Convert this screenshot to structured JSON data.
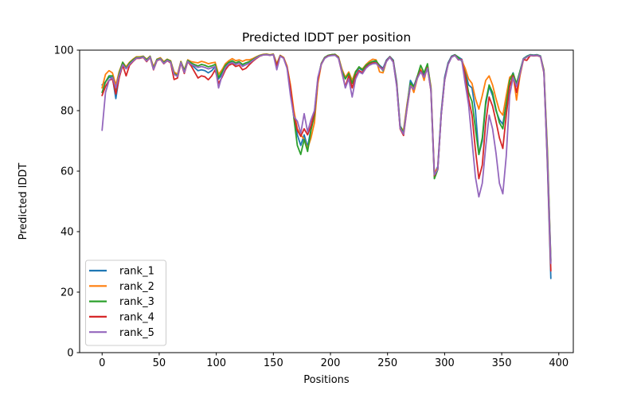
{
  "chart_data": {
    "type": "line",
    "title": "Predicted lDDT per position",
    "xlabel": "Positions",
    "ylabel": "Predicted lDDT",
    "xlim": [
      -19.7,
      412.7
    ],
    "ylim": [
      0,
      100
    ],
    "x_ticks": [
      0,
      50,
      100,
      150,
      200,
      250,
      300,
      350,
      400
    ],
    "y_ticks": [
      0,
      20,
      40,
      60,
      80,
      100
    ],
    "grid": false,
    "legend_position": "lower left",
    "x_start": 0,
    "x_step": 3,
    "series": [
      {
        "name": "rank_1",
        "color": "#1f77b4",
        "values": [
          88.5,
          89.5,
          91,
          91,
          84,
          91.5,
          95.5,
          94,
          95.5,
          96.5,
          97.7,
          97.7,
          98,
          96.7,
          98,
          94,
          97,
          97.4,
          96,
          97,
          96.4,
          92.2,
          91.5,
          96.2,
          93,
          96.7,
          95.3,
          94.2,
          93.2,
          93.5,
          93.2,
          92.5,
          93.2,
          94.5,
          90.5,
          92,
          94.5,
          95.8,
          96,
          95.2,
          95.8,
          94.8,
          95.2,
          95.8,
          96.6,
          97.4,
          98.1,
          98.5,
          98.6,
          98.4,
          98.6,
          95.2,
          98.2,
          97.5,
          94.5,
          88,
          78.5,
          72,
          68.5,
          72,
          68,
          74,
          79,
          90,
          95.5,
          97.6,
          98.3,
          98.5,
          98.6,
          97.7,
          93.5,
          90.5,
          92.5,
          89,
          92.5,
          94,
          93.3,
          94.8,
          95.7,
          96.2,
          96.2,
          95,
          94,
          96.7,
          97.9,
          96.7,
          89.5,
          75,
          73,
          81.5,
          90,
          88,
          91.3,
          93.5,
          92,
          94.5,
          87.5,
          59,
          61.5,
          79.5,
          91,
          95.8,
          98,
          98.5,
          97.7,
          97,
          93,
          88.5,
          87.5,
          80,
          65.5,
          70,
          82,
          88,
          85,
          80,
          77,
          75.5,
          82.5,
          90,
          92.5,
          88.5,
          93,
          97.2,
          98,
          98.5,
          98.4,
          98.5,
          98.1,
          93,
          62,
          24.5
        ]
      },
      {
        "name": "rank_2",
        "color": "#ff7f0e",
        "values": [
          87.5,
          92,
          93.2,
          92.5,
          88.5,
          93,
          96,
          94.5,
          96,
          97,
          97.8,
          97.8,
          98,
          97,
          98,
          94.5,
          97,
          97.5,
          96.2,
          97,
          96.5,
          92.8,
          92,
          96.3,
          93.5,
          96.8,
          96.2,
          96,
          95.8,
          96.3,
          96,
          95.5,
          95.8,
          96,
          92,
          93.5,
          95.5,
          96.5,
          97.2,
          96.5,
          96.8,
          96.3,
          96.8,
          96.8,
          97.2,
          97.8,
          98.3,
          98.6,
          98.7,
          98.5,
          98.7,
          95.5,
          98.3,
          97.6,
          94.8,
          88.5,
          80,
          74,
          72,
          70.5,
          67.5,
          71,
          76,
          89,
          95.2,
          97.4,
          98.2,
          98.5,
          98.6,
          97.8,
          93.8,
          91,
          92.8,
          90,
          93,
          94.3,
          93.8,
          95.2,
          96.3,
          97,
          96.8,
          92.8,
          92.5,
          96.3,
          97.8,
          96.3,
          88.5,
          74.5,
          73.5,
          82,
          89,
          86,
          90.5,
          93.8,
          90,
          94.8,
          88,
          59.5,
          61,
          78.5,
          90,
          95.3,
          97.7,
          98.4,
          97.5,
          96.5,
          94,
          90.5,
          89,
          84,
          80.5,
          85,
          90,
          91.5,
          88.5,
          84,
          80,
          78.5,
          85,
          91,
          92,
          83.5,
          91.5,
          96.8,
          97.7,
          98.4,
          98.3,
          98.4,
          98,
          93.5,
          67,
          30
        ]
      },
      {
        "name": "rank_3",
        "color": "#2ca02c",
        "values": [
          86,
          89.5,
          91.5,
          91.5,
          87,
          92.5,
          96,
          94,
          95.8,
          96.8,
          97.6,
          97.6,
          97.9,
          96.8,
          97.9,
          94,
          96.9,
          97.3,
          95.9,
          96.9,
          96.3,
          92.3,
          91.5,
          96.1,
          93.2,
          96.6,
          95.8,
          95.2,
          94.8,
          95.3,
          95,
          94.5,
          94.8,
          95.3,
          91,
          92.8,
          95,
          96,
          96.5,
          95.8,
          96.2,
          95.3,
          95.8,
          96.2,
          96.9,
          97.6,
          98.2,
          98.5,
          98.6,
          98.4,
          98.6,
          95,
          98.2,
          97.4,
          94.2,
          87,
          77.5,
          68.5,
          65.5,
          70.5,
          66.5,
          73.5,
          78.5,
          90.5,
          95.6,
          97.6,
          98.3,
          98.5,
          98.6,
          97.6,
          93.2,
          90.5,
          92.3,
          89,
          92.8,
          94.5,
          93.5,
          95,
          95.8,
          96.3,
          96.5,
          94.8,
          93.2,
          96.4,
          97.8,
          96.4,
          89,
          74.8,
          72.8,
          81.2,
          89.2,
          87.8,
          91.2,
          95,
          92.5,
          95.5,
          87.2,
          57.5,
          60.5,
          78.8,
          90.3,
          95.4,
          97.8,
          98.4,
          97.6,
          96.4,
          92.2,
          86,
          83,
          74,
          65.5,
          71,
          83,
          88.5,
          86,
          80.5,
          76,
          74,
          82,
          90,
          92.3,
          89,
          93,
          97.1,
          97.9,
          98.4,
          98.3,
          98.4,
          98,
          93.2,
          66,
          30.5
        ]
      },
      {
        "name": "rank_4",
        "color": "#d62728",
        "values": [
          85,
          88,
          90,
          90.5,
          85.5,
          91,
          95,
          91.5,
          95,
          96.2,
          97.3,
          97.3,
          97.6,
          96.2,
          97.6,
          93.5,
          96.5,
          97,
          95.5,
          96.5,
          95.8,
          90.3,
          90.8,
          95.8,
          92.3,
          96.2,
          94.8,
          92.8,
          90.8,
          91.5,
          91.2,
          90.2,
          91.5,
          93.5,
          89,
          91,
          93.5,
          95,
          95.5,
          94.6,
          95,
          93.5,
          94,
          95.2,
          96.3,
          97.2,
          98,
          98.4,
          98.5,
          98.3,
          98.5,
          94.8,
          98.1,
          97.4,
          94.3,
          87.5,
          78.5,
          73.5,
          71.5,
          74,
          72,
          75,
          79.5,
          90.2,
          95.4,
          97.4,
          98.1,
          98.3,
          98.4,
          97.4,
          92.5,
          88,
          91.5,
          87.5,
          91.5,
          93.2,
          92.6,
          94.3,
          95.3,
          95.8,
          95.8,
          94.6,
          93.6,
          96.4,
          97.7,
          96.2,
          88.5,
          74,
          71.8,
          80.5,
          88,
          87.2,
          90.8,
          93.2,
          91.2,
          94.2,
          86.5,
          58.5,
          60.8,
          78.6,
          90.2,
          95.3,
          97.7,
          98.3,
          96.8,
          96.9,
          91.5,
          84,
          78.5,
          67,
          57.5,
          62,
          76,
          84.5,
          81.5,
          76.5,
          71,
          67.5,
          78.5,
          88,
          91.5,
          86,
          92,
          96.9,
          96.6,
          98.2,
          98.1,
          98.2,
          97.8,
          92.5,
          63,
          27
        ]
      },
      {
        "name": "rank_5",
        "color": "#9467bd",
        "values": [
          73.5,
          86,
          90,
          91,
          87.5,
          91.8,
          95.2,
          93.8,
          95.3,
          96.4,
          97.4,
          97.4,
          97.7,
          96.4,
          97.7,
          93.6,
          96.6,
          97.1,
          95.6,
          96.6,
          96,
          92,
          91.3,
          95.9,
          92.6,
          96.3,
          95.2,
          94.8,
          94.3,
          94.6,
          94.3,
          93.8,
          94.2,
          94.6,
          87.5,
          91.5,
          94.2,
          95.5,
          95.9,
          95.3,
          95.7,
          94.6,
          95.2,
          95.7,
          96.6,
          97.4,
          98.1,
          98.4,
          98.5,
          98.3,
          98.5,
          93.5,
          98,
          97.3,
          94,
          85,
          78,
          76.5,
          72.5,
          79,
          73,
          77,
          80,
          91,
          95.3,
          97.3,
          98,
          98.2,
          98.3,
          97.3,
          92.8,
          87.5,
          90.5,
          84.5,
          90.5,
          92.8,
          92.2,
          94,
          95,
          95.5,
          95.6,
          94.4,
          93.4,
          96.2,
          97.6,
          96,
          88,
          74.2,
          72.2,
          80.8,
          88.2,
          87,
          90.6,
          92.8,
          91,
          94,
          86.8,
          58.8,
          60.6,
          78.4,
          90,
          95.2,
          97.6,
          98.2,
          96.9,
          96.7,
          89,
          82,
          70,
          58,
          51.5,
          56,
          68,
          78.5,
          74,
          66,
          56,
          52.5,
          65,
          85,
          91,
          88,
          92.2,
          97,
          97.7,
          98.3,
          98.2,
          98.3,
          97.9,
          92.8,
          64,
          29.5
        ]
      }
    ]
  }
}
